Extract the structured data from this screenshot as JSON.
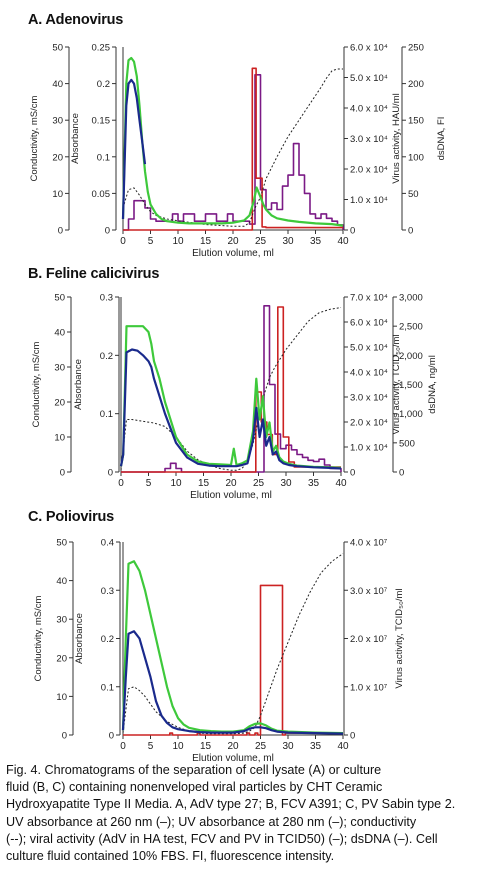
{
  "colors": {
    "uv260": "#3ec93b",
    "uv280": "#1a2a8c",
    "conductivity": "#222222",
    "virus": "#cc2222",
    "dsdna": "#7b1a86",
    "axis": "#333333"
  },
  "caption": {
    "lines": [
      "Fig. 4. Chromatograms of the separation of cell lysate (A) or culture",
      "fluid (B, C) containing nonenveloped viral particles by CHT Ceramic",
      "Hydroxyapatite Type II Media. A, AdV type 27; B, FCV A391; C, PV Sabin type 2.",
      "UV absorbance at 260 nm (–); UV absorbance at 280 nm (–); conductivity",
      "(--); viral activity (AdV in HA test, FCV and PV in TCID50) (–); dsDNA (–). Cell",
      "culture fluid contained 10% FBS. FI, fluorescence intensity."
    ]
  },
  "chart_data": [
    {
      "type": "line",
      "panel_title": "A. Adenovirus",
      "xlabel": "Elution volume, ml",
      "x_ticks": [
        "0",
        "5",
        "10",
        "15",
        "20",
        "25",
        "30",
        "35",
        "40"
      ],
      "xlim": [
        0,
        40
      ],
      "axes": {
        "conductivity": {
          "label": "Conductivity, mS/cm",
          "ticks": [
            "0",
            "10",
            "20",
            "30",
            "40",
            "50"
          ],
          "lim": [
            0,
            50
          ]
        },
        "absorbance": {
          "label": "Absorbance",
          "ticks": [
            "0",
            "0.05",
            "0.1",
            "0.15",
            "0.2",
            "0.25"
          ],
          "lim": [
            0,
            0.25
          ]
        },
        "virus": {
          "label": "Virus activity, HAU/ml",
          "ticks": [
            "0",
            "1.0 x 10⁴",
            "2.0 x 10⁴",
            "3.0 x 10⁴",
            "4.0 x 10⁴",
            "5.0 x 10⁴",
            "6.0 x 10⁴"
          ],
          "lim": [
            0,
            60000
          ]
        },
        "dsdna": {
          "label": "dsDNA, FI",
          "ticks": [
            "0",
            "50",
            "100",
            "150",
            "200",
            "250"
          ],
          "lim": [
            0,
            250
          ]
        }
      },
      "series": [
        {
          "key": "uv260",
          "axis": "absorbance",
          "step": false,
          "x": [
            0,
            0.6,
            1.0,
            1.5,
            2,
            2.5,
            3,
            3.5,
            4,
            4.5,
            5,
            6,
            7,
            8,
            10,
            12,
            15,
            18,
            20,
            22,
            23,
            23.8,
            24.3,
            25,
            25.5,
            26,
            27,
            28,
            30,
            32,
            35,
            38,
            40
          ],
          "y": [
            0.015,
            0.2,
            0.232,
            0.235,
            0.23,
            0.21,
            0.17,
            0.12,
            0.08,
            0.052,
            0.035,
            0.022,
            0.015,
            0.012,
            0.01,
            0.009,
            0.009,
            0.009,
            0.01,
            0.013,
            0.02,
            0.04,
            0.058,
            0.045,
            0.035,
            0.028,
            0.02,
            0.016,
            0.013,
            0.011,
            0.009,
            0.008,
            0.006
          ]
        },
        {
          "key": "uv280",
          "axis": "absorbance",
          "step": false,
          "x": [
            0,
            0.6,
            1.0,
            1.5,
            2,
            2.5,
            3,
            3.5,
            4
          ],
          "y": [
            0.015,
            0.17,
            0.2,
            0.205,
            0.2,
            0.18,
            0.15,
            0.12,
            0.09
          ]
        },
        {
          "key": "conductivity",
          "axis": "conductivity",
          "step": false,
          "x": [
            0,
            1,
            2,
            3,
            4,
            5,
            6,
            8,
            10,
            15,
            20,
            22,
            23,
            24,
            25,
            26,
            28,
            30,
            32,
            34,
            36,
            37,
            38,
            39,
            40
          ],
          "y": [
            6,
            11,
            11.5,
            9.5,
            7,
            5,
            4,
            3,
            2.5,
            1.5,
            1,
            1,
            2,
            6,
            9,
            14,
            20,
            25.5,
            30,
            34.5,
            39,
            41.5,
            43.5,
            44,
            44
          ]
        },
        {
          "key": "virus",
          "axis": "virus",
          "step": true,
          "x": [
            0,
            23,
            23.5,
            24,
            24.2,
            25,
            25.3,
            26,
            40
          ],
          "y": [
            0,
            0,
            53000,
            53000,
            17000,
            17000,
            1000,
            800,
            800
          ]
        },
        {
          "key": "dsdna",
          "axis": "dsdna",
          "step": true,
          "x": [
            0,
            1,
            2,
            3,
            4,
            5,
            6,
            9,
            10,
            11,
            13,
            15,
            17,
            19,
            20,
            22,
            23,
            24,
            25,
            26,
            27,
            28,
            29,
            30,
            31,
            32,
            33,
            34,
            35,
            36,
            37,
            38,
            39,
            40
          ],
          "y": [
            0,
            15,
            40,
            40,
            30,
            15,
            12,
            22,
            12,
            22,
            12,
            22,
            12,
            22,
            12,
            12,
            8,
            212,
            55,
            28,
            37,
            28,
            60,
            75,
            118,
            75,
            50,
            22,
            16,
            22,
            16,
            12,
            7,
            0
          ]
        }
      ]
    },
    {
      "type": "line",
      "panel_title": "B. Feline calicivirus",
      "xlabel": "Elution volume, ml",
      "x_ticks": [
        "0",
        "5",
        "10",
        "15",
        "20",
        "25",
        "30",
        "35",
        "40"
      ],
      "xlim": [
        0,
        40
      ],
      "axes": {
        "conductivity": {
          "label": "Conductivity, mS/cm",
          "ticks": [
            "0",
            "10",
            "20",
            "30",
            "40",
            "50"
          ],
          "lim": [
            0,
            50
          ]
        },
        "absorbance": {
          "label": "Absorbance",
          "ticks": [
            "0",
            "0.1",
            "0.2",
            "0.3"
          ],
          "lim": [
            0,
            0.3
          ]
        },
        "virus": {
          "label": "Virus activity, TCID₅₀/ml",
          "ticks": [
            "0",
            "1.0 x 10⁴",
            "2.0 x 10⁴",
            "3.0 x 10⁴",
            "4.0 x 10⁴",
            "5.0 x 10⁴",
            "6.0 x 10⁴",
            "7.0 x 10⁴"
          ],
          "lim": [
            0,
            70000
          ]
        },
        "dsdna": {
          "label": "dsDNA, ng/ml",
          "ticks": [
            "0",
            "500",
            "1,000",
            "1,500",
            "2,000",
            "2,500",
            "3,000"
          ],
          "lim": [
            0,
            3000
          ]
        }
      },
      "series": [
        {
          "key": "uv260",
          "axis": "absorbance",
          "step": false,
          "x": [
            0,
            0.4,
            1,
            2,
            3,
            4,
            5,
            5.5,
            6,
            7,
            8,
            10,
            12,
            14,
            16,
            18,
            20,
            20.5,
            21,
            22,
            23,
            24,
            24.6,
            25.2,
            25.8,
            26.4,
            27,
            27.6,
            28.2,
            28.8,
            29.5,
            30.5,
            32,
            35,
            38,
            40
          ],
          "y": [
            0.01,
            0.03,
            0.25,
            0.25,
            0.25,
            0.25,
            0.24,
            0.22,
            0.19,
            0.16,
            0.12,
            0.06,
            0.03,
            0.018,
            0.014,
            0.013,
            0.012,
            0.04,
            0.012,
            0.015,
            0.02,
            0.07,
            0.16,
            0.09,
            0.13,
            0.06,
            0.085,
            0.035,
            0.045,
            0.025,
            0.018,
            0.014,
            0.011,
            0.009,
            0.008,
            0.007
          ]
        },
        {
          "key": "uv280",
          "axis": "absorbance",
          "step": false,
          "x": [
            0,
            0.4,
            1,
            2,
            3,
            4,
            5,
            5.5,
            6,
            7,
            8,
            10,
            12,
            14,
            16,
            18,
            20,
            21,
            22,
            23,
            24,
            24.6,
            25.2,
            25.8,
            26.4,
            27,
            27.6,
            28.2,
            28.8,
            29.5,
            30.5,
            32,
            35,
            38,
            40
          ],
          "y": [
            0.01,
            0.03,
            0.205,
            0.21,
            0.208,
            0.2,
            0.19,
            0.18,
            0.16,
            0.13,
            0.1,
            0.05,
            0.025,
            0.014,
            0.011,
            0.01,
            0.01,
            0.01,
            0.012,
            0.015,
            0.055,
            0.11,
            0.06,
            0.09,
            0.045,
            0.06,
            0.03,
            0.035,
            0.02,
            0.015,
            0.012,
            0.01,
            0.008,
            0.007,
            0.006
          ]
        },
        {
          "key": "conductivity",
          "axis": "conductivity",
          "step": false,
          "x": [
            0,
            1,
            2,
            4,
            6,
            8,
            10,
            12,
            14,
            16,
            18,
            20,
            21,
            22,
            23,
            24,
            25,
            26,
            27,
            28,
            30,
            32,
            34,
            36,
            38,
            40
          ],
          "y": [
            0.5,
            15,
            15,
            14.5,
            14,
            13,
            10,
            6,
            3.5,
            2,
            1,
            0.5,
            0.5,
            1,
            3,
            8,
            15,
            22,
            27,
            30,
            35,
            39,
            43,
            45.5,
            46.5,
            47
          ]
        },
        {
          "key": "virus",
          "axis": "virus",
          "step": true,
          "x": [
            0,
            22,
            23.5,
            24.5,
            25.5,
            26.5,
            27.5,
            28.5,
            29.5,
            30.5,
            31.5,
            40
          ],
          "y": [
            0,
            0,
            0,
            32000,
            20000,
            15000,
            7000,
            66000,
            14000,
            4000,
            2000,
            2000
          ]
        },
        {
          "key": "dsdna",
          "axis": "dsdna",
          "step": true,
          "x": [
            0,
            2,
            3,
            4,
            5,
            6,
            7,
            8,
            9,
            10,
            11,
            19,
            20,
            21,
            22,
            23,
            24,
            25,
            26,
            27,
            28,
            29,
            30,
            31,
            32,
            33,
            34,
            35,
            36,
            37,
            38,
            40
          ],
          "y": [
            0,
            0,
            0,
            0,
            0,
            0,
            0,
            60,
            150,
            60,
            0,
            0,
            0,
            0,
            0,
            0,
            0,
            0,
            2850,
            1500,
            650,
            400,
            460,
            380,
            300,
            250,
            200,
            180,
            220,
            120,
            60,
            0
          ]
        }
      ]
    },
    {
      "type": "line",
      "panel_title": "C. Poliovirus",
      "xlabel": "Elution volume, ml",
      "x_ticks": [
        "0",
        "5",
        "10",
        "15",
        "20",
        "25",
        "30",
        "35",
        "40"
      ],
      "xlim": [
        0,
        40
      ],
      "axes": {
        "conductivity": {
          "label": "Conductivity, mS/cm",
          "ticks": [
            "0",
            "10",
            "20",
            "30",
            "40",
            "50"
          ],
          "lim": [
            0,
            50
          ]
        },
        "absorbance": {
          "label": "Absorbance",
          "ticks": [
            "0",
            "0.1",
            "0.2",
            "0.3",
            "0.4"
          ],
          "lim": [
            0,
            0.4
          ]
        },
        "virus": {
          "label": "Virus activity, TCID₅₀/ml",
          "ticks": [
            "0",
            "1.0 x 10⁷",
            "2.0 x 10⁷",
            "3.0 x 10⁷",
            "4.0 x 10⁷"
          ],
          "lim": [
            0,
            40000000
          ]
        }
      },
      "series": [
        {
          "key": "uv260",
          "axis": "absorbance",
          "step": false,
          "x": [
            0,
            0.5,
            1,
            2,
            3,
            4,
            5,
            6,
            7,
            8,
            9,
            10,
            11,
            12,
            14,
            16,
            18,
            20,
            22,
            23,
            24,
            25,
            26,
            27,
            28,
            30,
            35,
            40
          ],
          "y": [
            0.01,
            0.2,
            0.355,
            0.36,
            0.34,
            0.3,
            0.25,
            0.2,
            0.15,
            0.1,
            0.06,
            0.035,
            0.022,
            0.015,
            0.01,
            0.008,
            0.007,
            0.007,
            0.01,
            0.018,
            0.023,
            0.024,
            0.02,
            0.013,
            0.009,
            0.007,
            0.005,
            0.004
          ]
        },
        {
          "key": "uv280",
          "axis": "absorbance",
          "step": false,
          "x": [
            0,
            0.5,
            1,
            2,
            3,
            4,
            5,
            6,
            7,
            8,
            9,
            10,
            12,
            14,
            16,
            20,
            22,
            23,
            24,
            25,
            26,
            27,
            28,
            30,
            35,
            40
          ],
          "y": [
            0.01,
            0.12,
            0.21,
            0.215,
            0.2,
            0.16,
            0.12,
            0.07,
            0.04,
            0.025,
            0.016,
            0.012,
            0.008,
            0.006,
            0.005,
            0.005,
            0.008,
            0.013,
            0.016,
            0.016,
            0.014,
            0.01,
            0.007,
            0.005,
            0.004,
            0.003
          ]
        },
        {
          "key": "conductivity",
          "axis": "conductivity",
          "step": false,
          "x": [
            0,
            1,
            2,
            3,
            4,
            5,
            6,
            8,
            10,
            12,
            14,
            16,
            18,
            20,
            22,
            23,
            24,
            25,
            26,
            28,
            30,
            32,
            34,
            36,
            38,
            40
          ],
          "y": [
            0.5,
            12,
            12.5,
            11.5,
            10,
            8,
            6,
            3.5,
            2,
            1,
            0.5,
            0.3,
            0.3,
            0.3,
            0.5,
            1,
            2,
            5,
            9,
            17,
            24,
            31,
            37,
            42,
            45,
            47
          ]
        },
        {
          "key": "virus",
          "axis": "virus",
          "step": true,
          "x": [
            0,
            8,
            8.5,
            9,
            13,
            13.5,
            14,
            22,
            22.5,
            23,
            24,
            24.5,
            25,
            29,
            29.5,
            40
          ],
          "y": [
            0,
            0,
            400000,
            0,
            0,
            400000,
            0,
            0,
            400000,
            0,
            400000,
            0,
            31000000,
            0,
            400000,
            400000
          ]
        }
      ]
    }
  ]
}
